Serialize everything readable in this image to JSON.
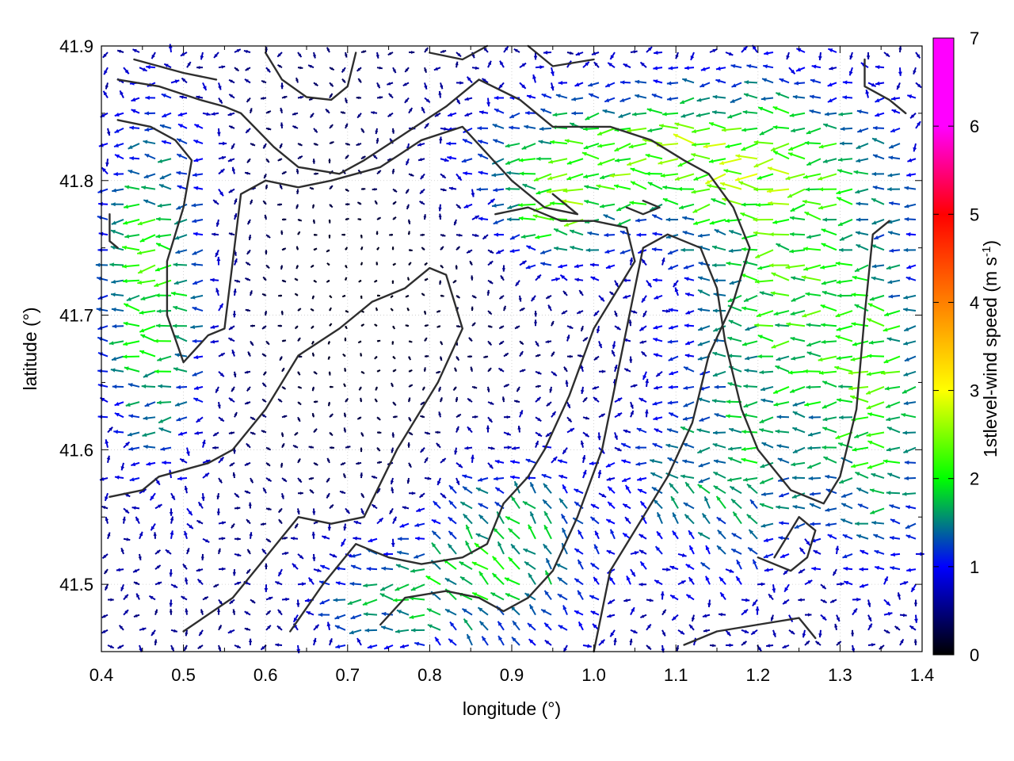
{
  "chart_data": {
    "type": "vector-field",
    "xlabel": "longitude (°)",
    "ylabel": "latitude (°)",
    "xlim": [
      0.4,
      1.4
    ],
    "ylim": [
      41.45,
      41.9
    ],
    "x_ticks": [
      "0.4",
      "0.5",
      "0.6",
      "0.7",
      "0.8",
      "0.9",
      "1.0",
      "1.1",
      "1.2",
      "1.3",
      "1.4"
    ],
    "y_ticks": [
      "41.5",
      "41.6",
      "41.7",
      "41.8",
      "41.9"
    ],
    "grid": true,
    "colorbar": {
      "label": "1stlevel-wind speed (m s",
      "label_sup": "-1",
      "label_end": ")",
      "range": [
        0,
        7
      ],
      "ticks": [
        "0",
        "1",
        "2",
        "3",
        "4",
        "5",
        "6",
        "7"
      ],
      "colors": [
        "#000000",
        "#0000ff",
        "#00ff00",
        "#ffff00",
        "#ff8000",
        "#ff0000",
        "#ff00ff"
      ]
    },
    "dominant_flow": "westward",
    "speed_range_observed": [
      0,
      4
    ],
    "contours": [
      [
        [
          0.42,
          41.875
        ],
        [
          0.47,
          41.87
        ],
        [
          0.52,
          41.86
        ],
        [
          0.55,
          41.855
        ],
        [
          0.57,
          41.85
        ],
        [
          0.61,
          41.825
        ],
        [
          0.64,
          41.81
        ],
        [
          0.69,
          41.805
        ],
        [
          0.72,
          41.815
        ],
        [
          0.77,
          41.835
        ],
        [
          0.82,
          41.855
        ],
        [
          0.86,
          41.875
        ],
        [
          0.91,
          41.86
        ],
        [
          0.95,
          41.84
        ],
        [
          1.02,
          41.84
        ],
        [
          1.07,
          41.83
        ],
        [
          1.11,
          41.815
        ],
        [
          1.14,
          41.805
        ],
        [
          1.17,
          41.78
        ],
        [
          1.19,
          41.75
        ],
        [
          1.17,
          41.71
        ],
        [
          1.14,
          41.67
        ],
        [
          1.12,
          41.62
        ],
        [
          1.09,
          41.58
        ],
        [
          1.06,
          41.55
        ],
        [
          1.02,
          41.51
        ],
        [
          1.0,
          41.45
        ]
      ],
      [
        [
          0.42,
          41.845
        ],
        [
          0.46,
          41.84
        ],
        [
          0.49,
          41.83
        ],
        [
          0.51,
          41.815
        ],
        [
          0.5,
          41.78
        ],
        [
          0.48,
          41.74
        ],
        [
          0.48,
          41.7
        ],
        [
          0.5,
          41.665
        ],
        [
          0.53,
          41.685
        ],
        [
          0.55,
          41.69
        ],
        [
          0.56,
          41.74
        ],
        [
          0.57,
          41.79
        ],
        [
          0.6,
          41.8
        ],
        [
          0.64,
          41.795
        ],
        [
          0.68,
          41.8
        ],
        [
          0.74,
          41.81
        ],
        [
          0.79,
          41.83
        ],
        [
          0.84,
          41.84
        ],
        [
          0.87,
          41.82
        ],
        [
          0.9,
          41.8
        ],
        [
          0.94,
          41.78
        ],
        [
          0.98,
          41.775
        ],
        [
          0.95,
          41.79
        ]
      ],
      [
        [
          0.5,
          41.465
        ],
        [
          0.56,
          41.49
        ],
        [
          0.6,
          41.52
        ],
        [
          0.64,
          41.55
        ],
        [
          0.68,
          41.545
        ],
        [
          0.72,
          41.55
        ],
        [
          0.76,
          41.6
        ],
        [
          0.78,
          41.62
        ],
        [
          0.81,
          41.65
        ],
        [
          0.84,
          41.69
        ],
        [
          0.82,
          41.73
        ],
        [
          0.8,
          41.735
        ],
        [
          0.77,
          41.72
        ],
        [
          0.73,
          41.71
        ],
        [
          0.69,
          41.69
        ],
        [
          0.64,
          41.67
        ],
        [
          0.6,
          41.63
        ],
        [
          0.56,
          41.6
        ],
        [
          0.53,
          41.59
        ],
        [
          0.5,
          41.585
        ],
        [
          0.47,
          41.58
        ],
        [
          0.45,
          41.57
        ],
        [
          0.41,
          41.565
        ]
      ],
      [
        [
          0.63,
          41.465
        ],
        [
          0.67,
          41.5
        ],
        [
          0.71,
          41.53
        ],
        [
          0.75,
          41.52
        ],
        [
          0.79,
          41.515
        ],
        [
          0.84,
          41.52
        ],
        [
          0.87,
          41.53
        ],
        [
          0.89,
          41.56
        ],
        [
          0.92,
          41.58
        ],
        [
          0.94,
          41.6
        ],
        [
          0.97,
          41.64
        ],
        [
          1.0,
          41.69
        ],
        [
          1.03,
          41.72
        ],
        [
          1.05,
          41.74
        ],
        [
          1.04,
          41.765
        ],
        [
          1.0,
          41.77
        ],
        [
          0.96,
          41.77
        ],
        [
          0.92,
          41.78
        ],
        [
          0.88,
          41.775
        ]
      ],
      [
        [
          0.74,
          41.47
        ],
        [
          0.77,
          41.49
        ],
        [
          0.82,
          41.495
        ],
        [
          0.86,
          41.49
        ],
        [
          0.89,
          41.48
        ],
        [
          0.92,
          41.49
        ],
        [
          0.95,
          41.51
        ],
        [
          0.98,
          41.55
        ],
        [
          1.01,
          41.6
        ],
        [
          1.03,
          41.66
        ],
        [
          1.05,
          41.72
        ],
        [
          1.06,
          41.75
        ],
        [
          1.09,
          41.76
        ],
        [
          1.13,
          41.75
        ],
        [
          1.15,
          41.72
        ],
        [
          1.16,
          41.68
        ],
        [
          1.18,
          41.63
        ],
        [
          1.2,
          41.6
        ],
        [
          1.24,
          41.57
        ],
        [
          1.28,
          41.56
        ],
        [
          1.3,
          41.58
        ],
        [
          1.32,
          41.63
        ],
        [
          1.33,
          41.7
        ],
        [
          1.34,
          41.76
        ],
        [
          1.36,
          41.77
        ]
      ],
      [
        [
          0.44,
          41.89
        ],
        [
          0.47,
          41.885
        ],
        [
          0.5,
          41.88
        ],
        [
          0.54,
          41.875
        ]
      ],
      [
        [
          0.71,
          41.895
        ],
        [
          0.7,
          41.87
        ],
        [
          0.68,
          41.86
        ],
        [
          0.65,
          41.862
        ],
        [
          0.62,
          41.875
        ],
        [
          0.6,
          41.895
        ]
      ],
      [
        [
          0.8,
          41.895
        ],
        [
          0.84,
          41.89
        ],
        [
          0.87,
          41.9
        ]
      ],
      [
        [
          0.92,
          41.9
        ],
        [
          0.95,
          41.885
        ],
        [
          1.0,
          41.89
        ]
      ],
      [
        [
          1.33,
          41.89
        ],
        [
          1.33,
          41.87
        ],
        [
          1.36,
          41.86
        ],
        [
          1.38,
          41.85
        ]
      ],
      [
        [
          0.41,
          41.775
        ],
        [
          0.41,
          41.755
        ],
        [
          0.42,
          41.75
        ]
      ],
      [
        [
          1.04,
          41.78
        ],
        [
          1.06,
          41.775
        ],
        [
          1.08,
          41.78
        ],
        [
          1.06,
          41.785
        ]
      ],
      [
        [
          1.11,
          41.455
        ],
        [
          1.15,
          41.465
        ],
        [
          1.2,
          41.47
        ],
        [
          1.25,
          41.475
        ],
        [
          1.27,
          41.46
        ]
      ],
      [
        [
          1.2,
          41.52
        ],
        [
          1.24,
          41.51
        ],
        [
          1.26,
          41.52
        ],
        [
          1.27,
          41.54
        ],
        [
          1.25,
          41.55
        ],
        [
          1.22,
          41.52
        ]
      ]
    ]
  }
}
